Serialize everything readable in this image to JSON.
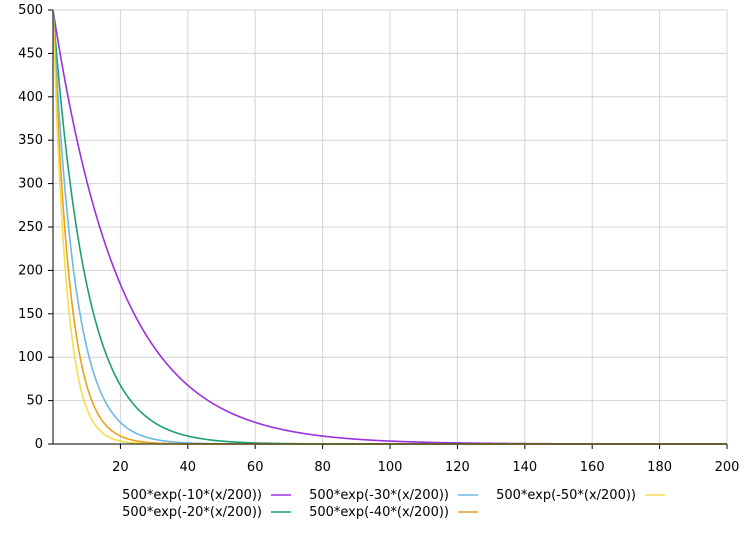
{
  "chart_data": {
    "type": "line",
    "title": "",
    "xlabel": "",
    "ylabel": "",
    "xlim": [
      0,
      200
    ],
    "ylim": [
      0,
      500
    ],
    "x_ticks": [
      20,
      40,
      60,
      80,
      100,
      120,
      140,
      160,
      180,
      200
    ],
    "y_ticks": [
      0,
      50,
      100,
      150,
      200,
      250,
      300,
      350,
      400,
      450,
      500
    ],
    "grid": true,
    "legend_position": "bottom",
    "series": [
      {
        "name": "500*exp(-10*(x/200))",
        "amplitude": 500,
        "rate": -10,
        "divisor": 200,
        "color": "#9b30e0"
      },
      {
        "name": "500*exp(-20*(x/200))",
        "amplitude": 500,
        "rate": -20,
        "divisor": 200,
        "color": "#1e9e78"
      },
      {
        "name": "500*exp(-30*(x/200))",
        "amplitude": 500,
        "rate": -30,
        "divisor": 200,
        "color": "#6cb8e6"
      },
      {
        "name": "500*exp(-40*(x/200))",
        "amplitude": 500,
        "rate": -40,
        "divisor": 200,
        "color": "#e6a11e"
      },
      {
        "name": "500*exp(-50*(x/200))",
        "amplitude": 500,
        "rate": -50,
        "divisor": 200,
        "color": "#f2df4a"
      }
    ]
  }
}
